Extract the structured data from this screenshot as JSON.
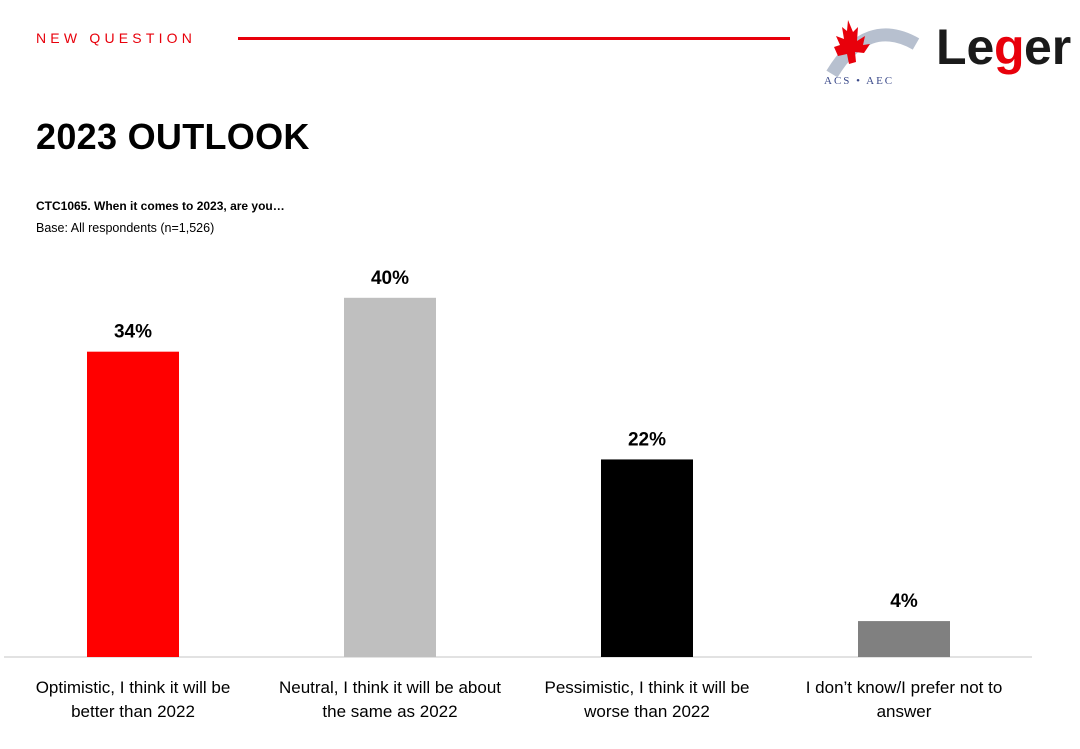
{
  "header": {
    "kicker": "NEW QUESTION",
    "acs_logo_text": "ACS • AEC",
    "leger_logo_text": "Leger"
  },
  "title": "2023 OUTLOOK",
  "question": "CTC1065. When it comes to 2023, are you…",
  "base": "Base: All respondents (n=1,526)",
  "colors": {
    "accent": "#e8000b",
    "optimistic": "#ff0000",
    "neutral": "#bfbfbf",
    "pessimistic": "#000000",
    "dont_know": "#808080",
    "axis": "#d9d9d9"
  },
  "chart_data": {
    "type": "bar",
    "categories": [
      [
        "Optimistic, I think it will be",
        "better than 2022"
      ],
      [
        "Neutral, I think it will be about",
        "the same as 2022"
      ],
      [
        "Pessimistic, I think it will be",
        "worse than 2022"
      ],
      [
        "I don’t know/I prefer not to",
        "answer"
      ]
    ],
    "values": [
      34,
      40,
      22,
      4
    ],
    "value_labels": [
      "34%",
      "40%",
      "22%",
      "4%"
    ],
    "bar_colors": [
      "#ff0000",
      "#bfbfbf",
      "#000000",
      "#808080"
    ],
    "ylim": [
      0,
      40
    ],
    "grid": false,
    "legend": "none"
  }
}
